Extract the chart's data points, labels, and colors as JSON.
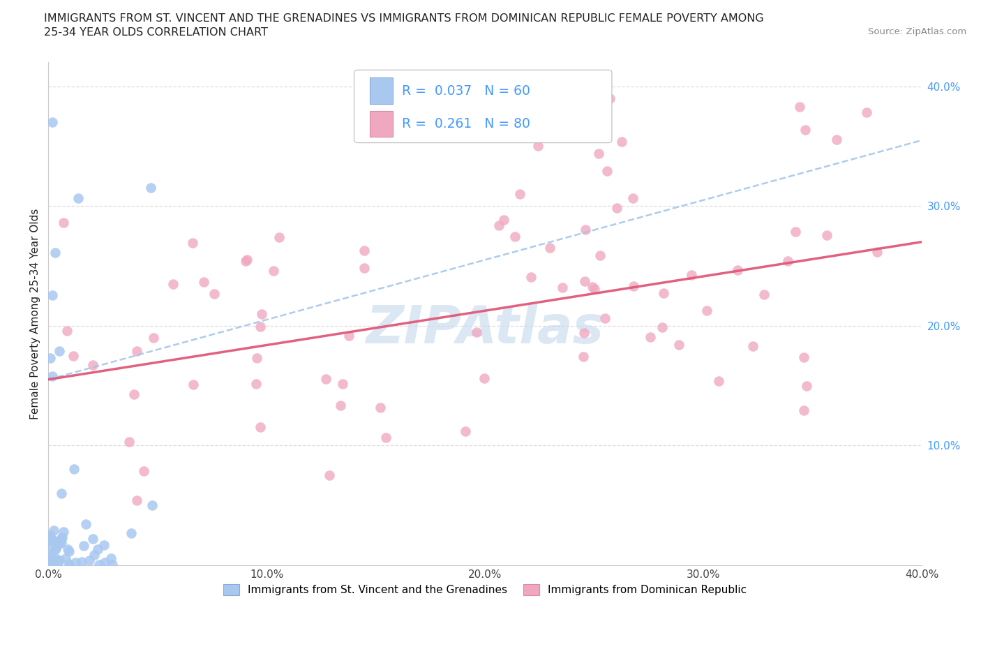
{
  "title_line1": "IMMIGRANTS FROM ST. VINCENT AND THE GRENADINES VS IMMIGRANTS FROM DOMINICAN REPUBLIC FEMALE POVERTY AMONG",
  "title_line2": "25-34 YEAR OLDS CORRELATION CHART",
  "source_text": "Source: ZipAtlas.com",
  "watermark_text": "ZIPAtlas",
  "ylabel_label": "Female Poverty Among 25-34 Year Olds",
  "legend_label1": "Immigrants from St. Vincent and the Grenadines",
  "legend_label2": "Immigrants from Dominican Republic",
  "r1": 0.037,
  "n1": 60,
  "r2": 0.261,
  "n2": 80,
  "color1": "#a8c8f0",
  "color2": "#f0a8c0",
  "trendline1_color": "#a0c4e8",
  "trendline2_color": "#e05878",
  "xmin": 0.0,
  "xmax": 0.4,
  "ymin": 0.0,
  "ymax": 0.42,
  "xtick_labels": [
    "0.0%",
    "10.0%",
    "20.0%",
    "30.0%",
    "40.0%"
  ],
  "xtick_values": [
    0.0,
    0.1,
    0.2,
    0.3,
    0.4
  ],
  "ytick_right_labels": [
    "10.0%",
    "20.0%",
    "30.0%",
    "40.0%"
  ],
  "ytick_right_values": [
    0.1,
    0.2,
    0.3,
    0.4
  ],
  "grid_color": "#dddddd",
  "background_color": "#ffffff",
  "title_color": "#222222",
  "right_tick_color": "#4499ff",
  "watermark_color": "#c5d8ee",
  "trendline1_start_y": 0.155,
  "trendline1_end_y": 0.355,
  "trendline2_start_y": 0.155,
  "trendline2_end_y": 0.27,
  "seed": 99
}
